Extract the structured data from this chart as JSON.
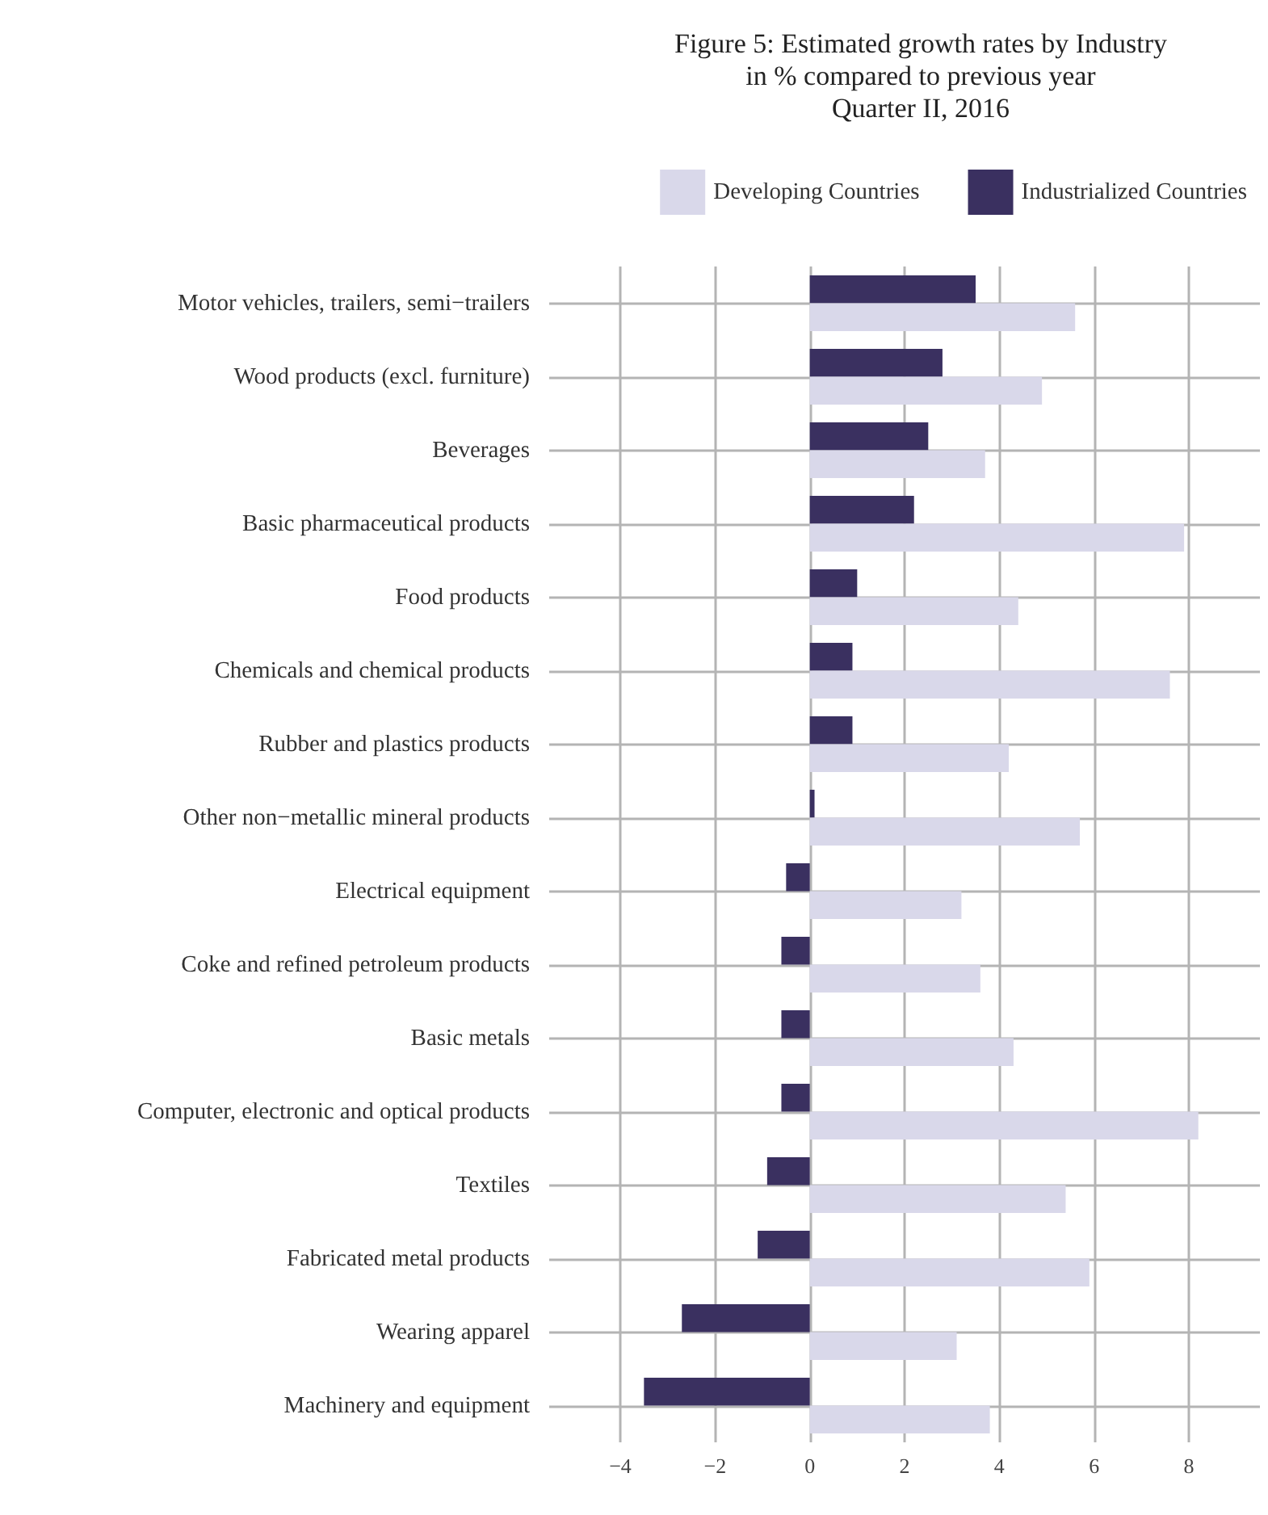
{
  "chart_data": {
    "type": "bar",
    "orientation": "horizontal",
    "title": "Figure 5: Estimated growth rates by Industry\nin % compared to previous year\nQuarter II, 2016",
    "categories": [
      "Motor vehicles, trailers, semi−trailers",
      "Wood products (excl. furniture)",
      "Beverages",
      "Basic pharmaceutical products",
      "Food products",
      "Chemicals and chemical products",
      "Rubber and plastics products",
      "Other non−metallic mineral products",
      "Electrical equipment",
      "Coke and refined petroleum products",
      "Basic metals",
      "Computer, electronic and optical products",
      "Textiles",
      "Fabricated metal products",
      "Wearing apparel",
      "Machinery and equipment"
    ],
    "series": [
      {
        "name": "Developing Countries",
        "color": "#d9d8ea",
        "values": [
          5.6,
          4.9,
          3.7,
          7.9,
          4.4,
          7.6,
          4.2,
          5.7,
          3.2,
          3.6,
          4.3,
          8.2,
          5.4,
          5.9,
          3.1,
          3.8
        ]
      },
      {
        "name": "Industrialized Countries",
        "color": "#3a3060",
        "values": [
          3.5,
          2.8,
          2.5,
          2.2,
          1.0,
          0.9,
          0.9,
          0.1,
          -0.5,
          -0.6,
          -0.6,
          -0.6,
          -0.9,
          -1.1,
          -2.7,
          -3.5
        ]
      }
    ],
    "xlim": [
      -5.5,
      9.5
    ],
    "xticks": [
      -4,
      -2,
      0,
      2,
      4,
      6,
      8
    ],
    "grid": true,
    "legend": "top right"
  }
}
